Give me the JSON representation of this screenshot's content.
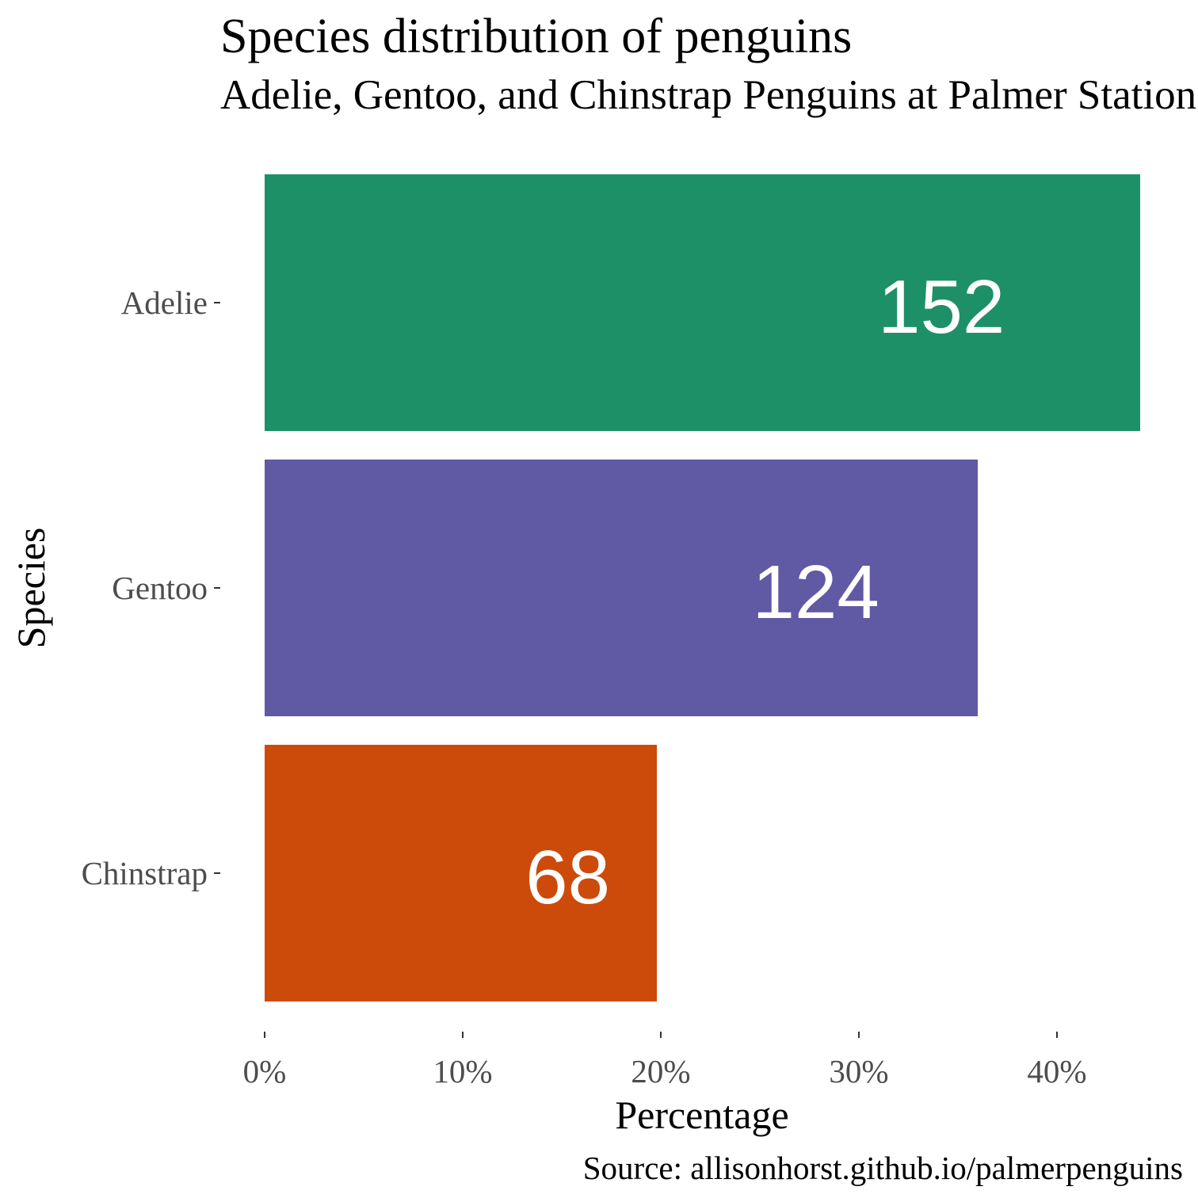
{
  "chart_data": {
    "type": "bar",
    "orientation": "horizontal",
    "title": "Species distribution of penguins",
    "subtitle": "Adelie, Gentoo, and Chinstrap Penguins at Palmer Station",
    "caption": "Source: allisonhorst.github.io/palmerpenguins",
    "xlabel": "Percentage",
    "ylabel": "Species",
    "xlim": [
      0,
      0.45
    ],
    "x_ticks": [
      0,
      0.1,
      0.2,
      0.3,
      0.4
    ],
    "x_tick_labels": [
      "0%",
      "10%",
      "20%",
      "30%",
      "40%"
    ],
    "categories": [
      "Adelie",
      "Gentoo",
      "Chinstrap"
    ],
    "values": [
      0.442,
      0.36,
      0.198
    ],
    "counts": [
      "152",
      "124",
      "68"
    ],
    "colors": [
      "#1e9068",
      "#6059a3",
      "#cc4a0a"
    ],
    "grid": false,
    "legend": "none"
  }
}
